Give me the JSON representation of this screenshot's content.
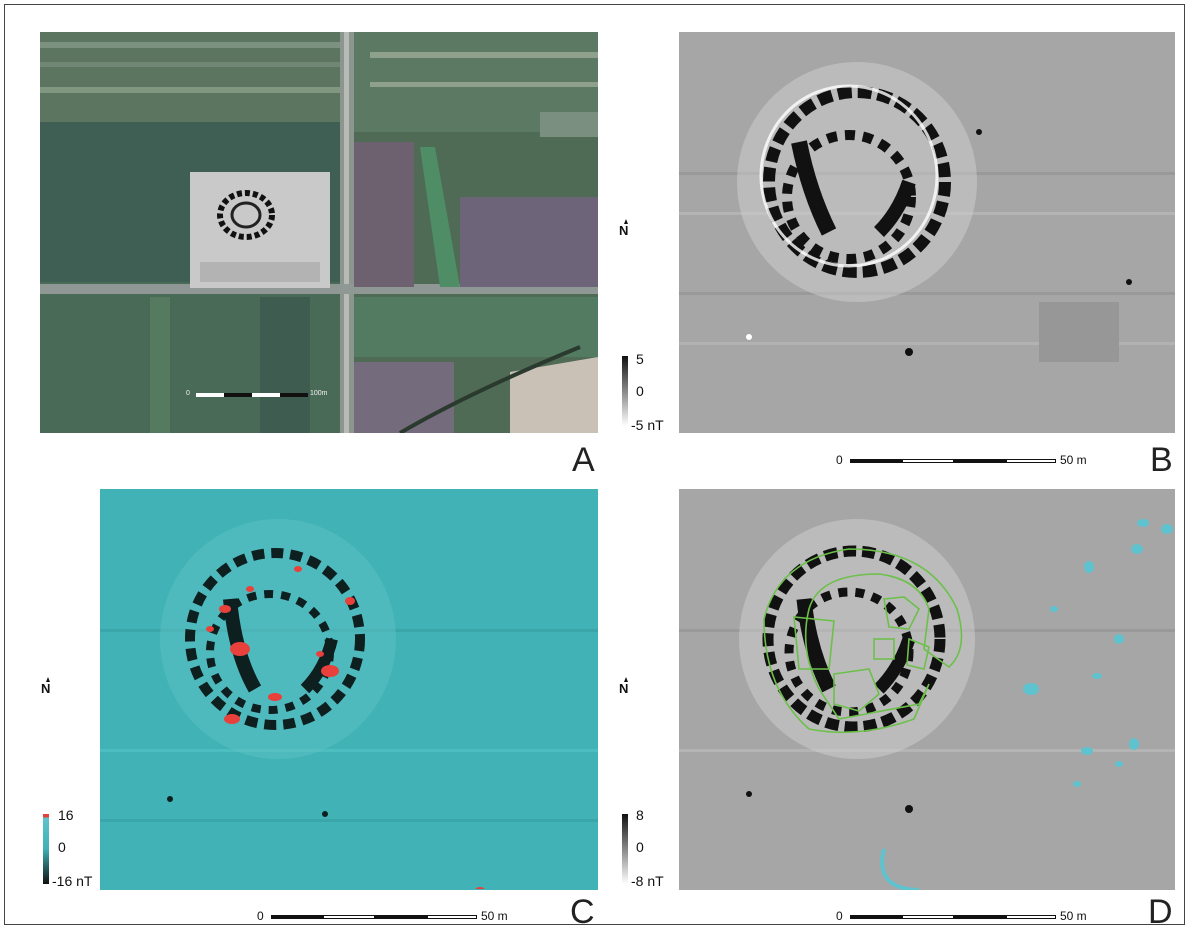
{
  "panels": {
    "a": {
      "letter": "A",
      "scale": {
        "start": "0",
        "end": "100m"
      }
    },
    "b": {
      "letter": "B",
      "scale": {
        "start": "0",
        "end": "50 m"
      },
      "colorbar": {
        "max": "5",
        "mid": "0",
        "min": "-5 nT"
      }
    },
    "c": {
      "letter": "C",
      "scale": {
        "start": "0",
        "end": "50 m"
      },
      "colorbar": {
        "max": "16",
        "mid": "0",
        "min": "-16 nT"
      }
    },
    "d": {
      "letter": "D",
      "scale": {
        "start": "0",
        "end": "50 m"
      },
      "colorbar": {
        "max": "8",
        "mid": "0",
        "min": "-8 nT"
      }
    }
  },
  "north_label": "N",
  "colors": {
    "anomaly_red": "#e8403a",
    "outline_green": "#6cc04a",
    "feature_cyan": "#5fc3cf",
    "field_teal": "#3fb0b4"
  }
}
